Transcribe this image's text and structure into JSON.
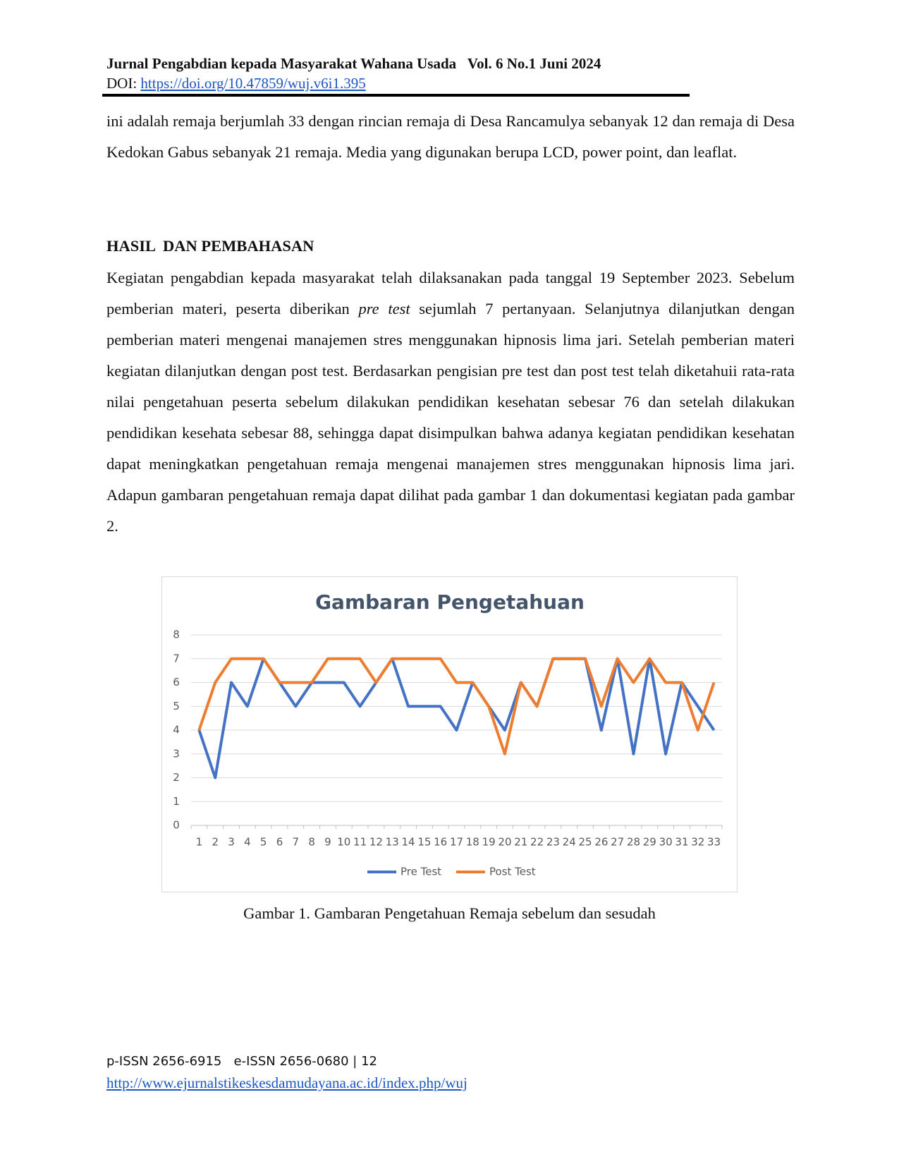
{
  "header": {
    "journal": "Jurnal Pengabdian kepada Masyarakat Wahana Usada",
    "volume": "Vol. 6 No.1 Juni 2024",
    "doi_label": "DOI:",
    "doi_link": "https://doi.org/10.47859/wuj.v6i1.395"
  },
  "body": {
    "paragraph_1": "ini adalah remaja berjumlah 33 dengan rincian remaja di Desa Rancamulya sebanyak 12 dan remaja di Desa Kedokan Gabus sebanyak 21 remaja. Media yang digunakan berupa LCD, power point, dan leaflat.",
    "heading": "HASIL  DAN PEMBAHASAN",
    "paragraph_2": [
      "Kegiatan pengabdian kepada masyarakat telah dilaksanakan pada tanggal 19 September 2023. Sebelum pemberian materi, peserta diberikan ",
      "pre test",
      " sejumlah 7 pertanyaan. Selanjutnya dilanjutkan dengan pemberian materi mengenai manajemen stres menggunakan hipnosis lima jari. Setelah pemberian materi kegiatan dilanjutkan dengan post test. Berdasarkan pengisian pre test dan post test telah diketahuii rata-rata nilai pengetahuan peserta sebelum dilakukan pendidikan kesehatan sebesar 76 dan setelah dilakukan pendidikan kesehata sebesar 88, sehingga dapat disimpulkan bahwa adanya kegiatan pendidikan kesehatan dapat meningkatkan pengetahuan remaja mengenai manajemen stres menggunakan hipnosis lima jari. Adapun gambaran pengetahuan remaja dapat dilihat pada gambar 1 dan dokumentasi kegiatan pada gambar 2."
    ]
  },
  "chart_data": {
    "type": "line",
    "title": "Gambaran Pengetahuan",
    "categories": [
      "1",
      "2",
      "3",
      "4",
      "5",
      "6",
      "7",
      "8",
      "9",
      "10",
      "11",
      "12",
      "13",
      "14",
      "15",
      "16",
      "17",
      "18",
      "19",
      "20",
      "21",
      "22",
      "23",
      "24",
      "25",
      "26",
      "27",
      "28",
      "29",
      "30",
      "31",
      "32",
      "33"
    ],
    "series": [
      {
        "name": "Pre Test",
        "color": "#4472c4",
        "values": [
          4,
          2,
          6,
          5,
          7,
          6,
          5,
          6,
          6,
          6,
          5,
          6,
          7,
          5,
          5,
          5,
          4,
          6,
          5,
          4,
          6,
          5,
          7,
          7,
          7,
          4,
          7,
          3,
          7,
          3,
          6,
          5,
          4
        ]
      },
      {
        "name": "Post Test",
        "color": "#ed7d31",
        "values": [
          4,
          6,
          7,
          7,
          7,
          6,
          6,
          6,
          7,
          7,
          7,
          6,
          7,
          7,
          7,
          7,
          6,
          6,
          5,
          3,
          6,
          5,
          7,
          7,
          7,
          5,
          7,
          6,
          7,
          6,
          6,
          4,
          6
        ]
      }
    ],
    "ylim": [
      0,
      8
    ],
    "yticks": [
      0,
      1,
      2,
      3,
      4,
      5,
      6,
      7,
      8
    ],
    "grid": true,
    "legend": "bottom"
  },
  "caption": "Gambar 1. Gambaran Pengetahuan Remaja sebelum dan sesudah",
  "footer": {
    "issn": "p-ISSN 2656-6915   e-ISSN 2656-0680 | 12",
    "url": "http://www.ejurnalstikeskesdamudayana.ac.id/index.php/wuj"
  }
}
